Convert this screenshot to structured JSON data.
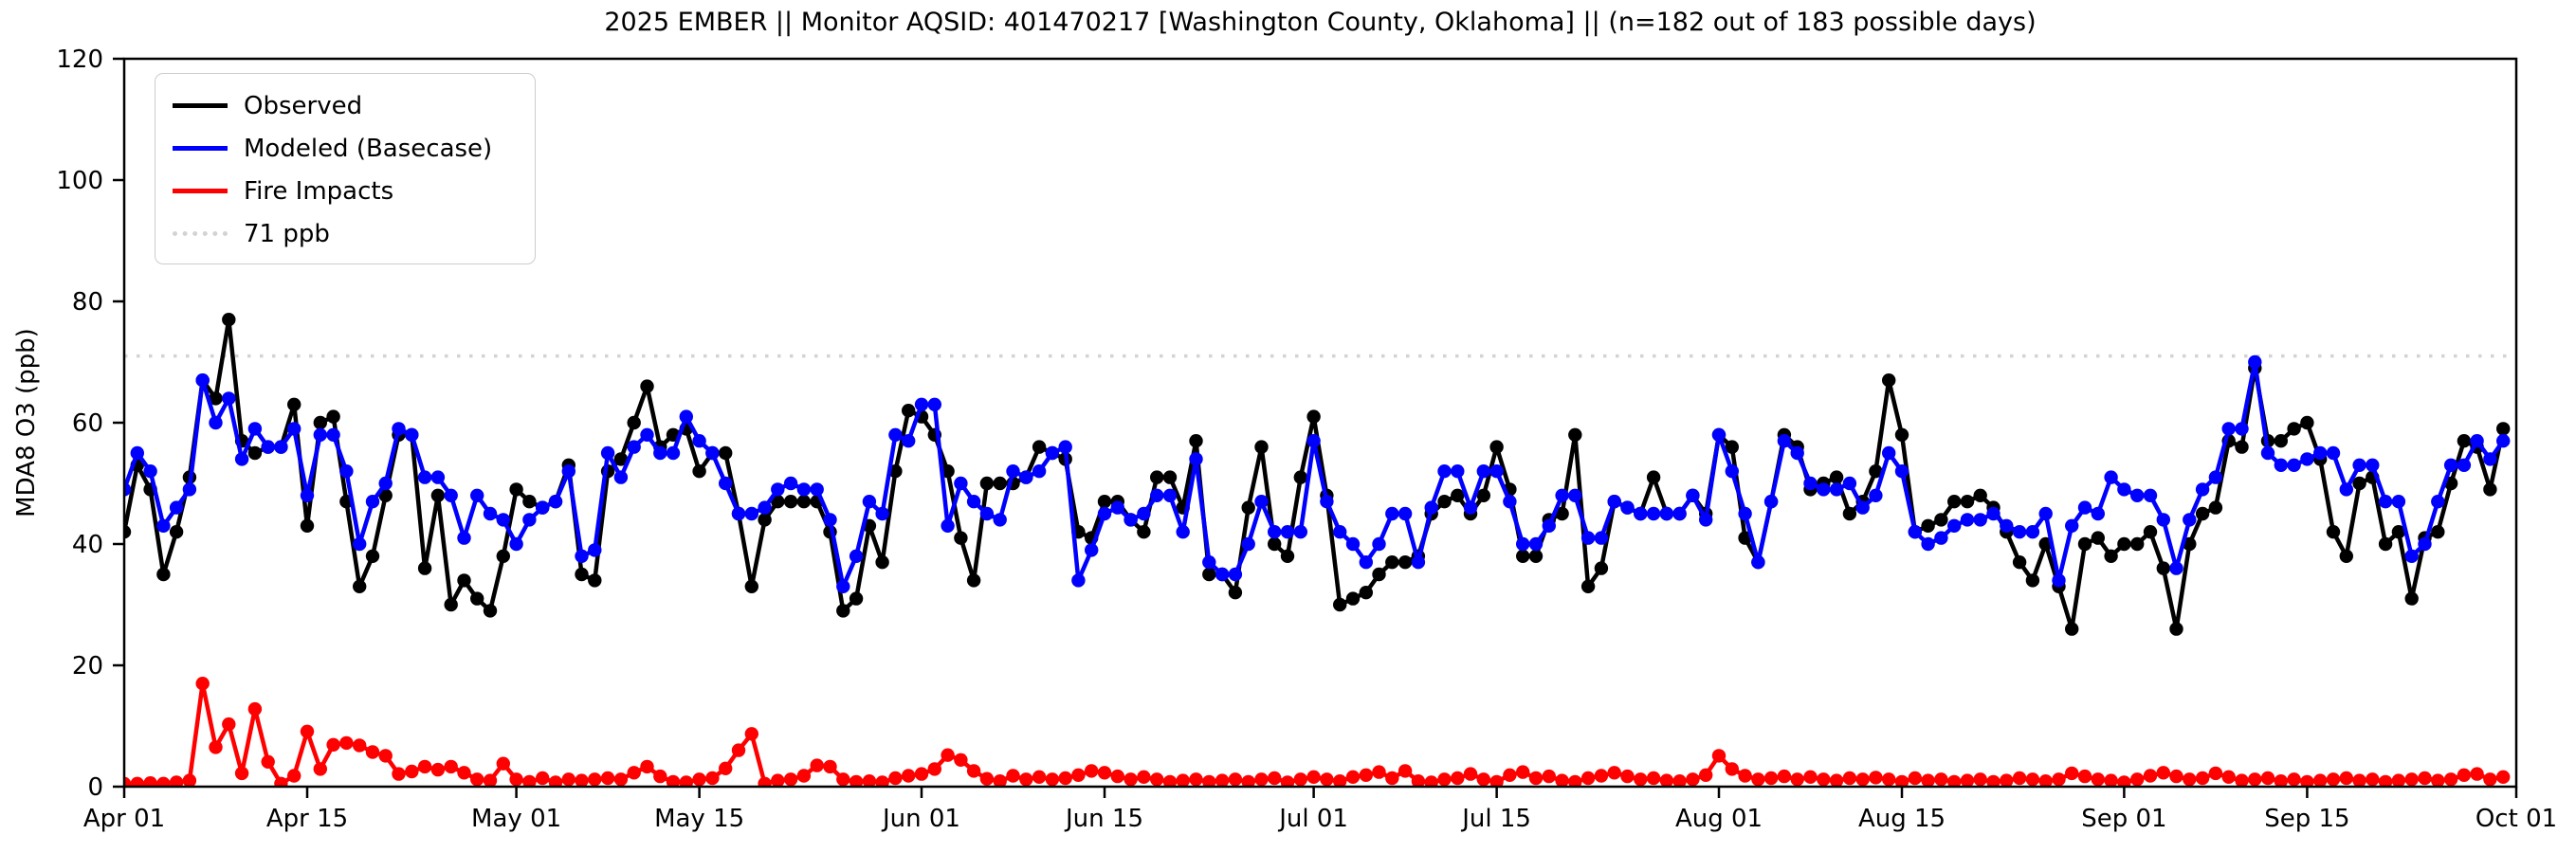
{
  "monitor": {
    "year": "2025",
    "program": "EMBER",
    "aqsid": "401470217",
    "location": "Washington County, Oklahoma",
    "days_observed": 182,
    "days_possible": 183
  },
  "chart_data": {
    "type": "line",
    "title": "2025 EMBER || Monitor AQSID: 401470217 [Washington County, Oklahoma] || (n=182 out of 183 possible days)",
    "xlabel": "",
    "ylabel": "MDA8 O3 (ppb)",
    "ylim": [
      0,
      120
    ],
    "yticks": [
      0,
      20,
      40,
      60,
      80,
      100,
      120
    ],
    "grid": false,
    "legend_position": "upper left",
    "x_range_days": 183,
    "x_start_date": "Apr 01",
    "x_end_date": "Oct 01",
    "xticks": [
      {
        "label": "Apr 01",
        "day": 0
      },
      {
        "label": "Apr 15",
        "day": 14
      },
      {
        "label": "May 01",
        "day": 30
      },
      {
        "label": "May 15",
        "day": 44
      },
      {
        "label": "Jun 01",
        "day": 61
      },
      {
        "label": "Jun 15",
        "day": 75
      },
      {
        "label": "Jul 01",
        "day": 91
      },
      {
        "label": "Jul 15",
        "day": 105
      },
      {
        "label": "Aug 01",
        "day": 122
      },
      {
        "label": "Aug 15",
        "day": 136
      },
      {
        "label": "Sep 01",
        "day": 153
      },
      {
        "label": "Sep 15",
        "day": 167
      },
      {
        "label": "Oct 01",
        "day": 183
      }
    ],
    "threshold": {
      "label": "71 ppb",
      "value": 71,
      "color": "#d3d3d3",
      "style": "dotted"
    },
    "series": [
      {
        "name": "Observed",
        "color": "#000000",
        "marker": "circle",
        "values": [
          42,
          53,
          49,
          35,
          42,
          51,
          67,
          64,
          77,
          57,
          55,
          56,
          56,
          63,
          43,
          60,
          61,
          47,
          33,
          38,
          48,
          58,
          58,
          36,
          48,
          30,
          34,
          31,
          29,
          38,
          49,
          47,
          46,
          47,
          53,
          35,
          34,
          52,
          54,
          60,
          66,
          56,
          58,
          59,
          52,
          55,
          55,
          45,
          33,
          44,
          47,
          47,
          47,
          47,
          42,
          29,
          31,
          43,
          37,
          52,
          62,
          61,
          58,
          52,
          41,
          34,
          50,
          50,
          50,
          51,
          56,
          55,
          54,
          42,
          41,
          47,
          47,
          44,
          42,
          51,
          51,
          46,
          57,
          35,
          35,
          32,
          46,
          56,
          40,
          38,
          51,
          61,
          48,
          30,
          31,
          32,
          35,
          37,
          37,
          38,
          45,
          47,
          48,
          45,
          48,
          56,
          49,
          38,
          38,
          44,
          45,
          58,
          33,
          36,
          47,
          46,
          45,
          51,
          45,
          45,
          48,
          45,
          58,
          56,
          41,
          37,
          47,
          58,
          56,
          49,
          50,
          51,
          45,
          47,
          52,
          67,
          58,
          42,
          43,
          44,
          47,
          47,
          48,
          46,
          42,
          37,
          34,
          40,
          33,
          26,
          40,
          41,
          38,
          40,
          40,
          42,
          36,
          26,
          40,
          45,
          46,
          57,
          56,
          69,
          57,
          57,
          59,
          60,
          54,
          42,
          38,
          50,
          51,
          40,
          42,
          31,
          41,
          42,
          50,
          57,
          56,
          49,
          59
        ]
      },
      {
        "name": "Modeled (Basecase)",
        "color": "#0000ff",
        "marker": "circle",
        "values": [
          49,
          55,
          52,
          43,
          46,
          49,
          67,
          60,
          64,
          54,
          59,
          56,
          56,
          59,
          48,
          58,
          58,
          52,
          40,
          47,
          50,
          59,
          58,
          51,
          51,
          48,
          41,
          48,
          45,
          44,
          40,
          44,
          46,
          47,
          52,
          38,
          39,
          55,
          51,
          56,
          58,
          55,
          55,
          61,
          57,
          55,
          50,
          45,
          45,
          46,
          49,
          50,
          49,
          49,
          44,
          33,
          38,
          47,
          45,
          58,
          57,
          63,
          63,
          43,
          50,
          47,
          45,
          44,
          52,
          51,
          52,
          55,
          56,
          34,
          39,
          45,
          46,
          44,
          45,
          48,
          48,
          42,
          54,
          37,
          35,
          35,
          40,
          47,
          42,
          42,
          42,
          57,
          47,
          42,
          40,
          37,
          40,
          45,
          45,
          37,
          46,
          52,
          52,
          46,
          52,
          52,
          47,
          40,
          40,
          43,
          48,
          48,
          41,
          41,
          47,
          46,
          45,
          45,
          45,
          45,
          48,
          44,
          58,
          52,
          45,
          37,
          47,
          57,
          55,
          50,
          49,
          49,
          50,
          46,
          48,
          55,
          52,
          42,
          40,
          41,
          43,
          44,
          44,
          45,
          43,
          42,
          42,
          45,
          34,
          43,
          46,
          45,
          51,
          49,
          48,
          48,
          44,
          36,
          44,
          49,
          51,
          59,
          59,
          70,
          55,
          53,
          53,
          54,
          55,
          55,
          49,
          53,
          53,
          47,
          47,
          38,
          40,
          47,
          53,
          53,
          57,
          54,
          57
        ]
      },
      {
        "name": "Fire Impacts",
        "color": "#ff0000",
        "marker": "circle",
        "values": [
          0.5,
          0.5,
          0.6,
          0.5,
          0.7,
          1,
          17,
          6.5,
          10.3,
          2.2,
          12.8,
          4.1,
          0.5,
          1.8,
          9.1,
          2.9,
          6.9,
          7.2,
          6.8,
          5.7,
          5.1,
          2.1,
          2.5,
          3.3,
          2.8,
          3.3,
          2.3,
          1.2,
          1,
          3.8,
          1.2,
          0.8,
          1.4,
          0.7,
          1.2,
          1,
          1.2,
          1.4,
          1.2,
          2.3,
          3.3,
          1.7,
          0.8,
          0.7,
          1.2,
          1.4,
          3,
          6,
          8.7,
          0.5,
          1,
          1.2,
          1.8,
          3.5,
          3.3,
          1.2,
          0.8,
          0.9,
          0.7,
          1.4,
          1.8,
          2.1,
          2.9,
          5.2,
          4.4,
          2.6,
          1.3,
          0.9,
          1.8,
          1.2,
          1.6,
          1.2,
          1.4,
          1.9,
          2.6,
          2.3,
          1.7,
          1.2,
          1.6,
          1.2,
          0.8,
          1,
          1.2,
          0.8,
          1,
          1.2,
          0.8,
          1.2,
          1.4,
          0.7,
          1.2,
          1.6,
          1.2,
          0.9,
          1.6,
          1.9,
          2.4,
          1.4,
          2.6,
          0.9,
          0.7,
          1.2,
          1.4,
          2.1,
          1.2,
          0.8,
          1.9,
          2.4,
          1.4,
          1.7,
          1,
          0.8,
          1.4,
          1.8,
          2.3,
          1.7,
          1.2,
          1.4,
          1,
          0.9,
          1.2,
          1.9,
          5.1,
          2.9,
          1.8,
          1.2,
          1.4,
          1.7,
          1.2,
          1.6,
          1.2,
          1,
          1.4,
          1.2,
          1.5,
          1.2,
          0.8,
          1.4,
          1,
          1.2,
          0.8,
          1,
          1.2,
          0.8,
          1,
          1.4,
          1.2,
          0.9,
          1.2,
          2.2,
          1.7,
          1.2,
          1,
          0.7,
          1.2,
          1.8,
          2.3,
          1.7,
          1.2,
          1.4,
          2.2,
          1.6,
          1,
          1.2,
          1.4,
          0.9,
          1.2,
          0.8,
          1,
          1.2,
          1.4,
          1,
          1.2,
          0.8,
          1,
          1.2,
          1.4,
          1,
          1.2,
          1.9,
          2.1,
          1.2,
          1.6
        ]
      }
    ]
  }
}
